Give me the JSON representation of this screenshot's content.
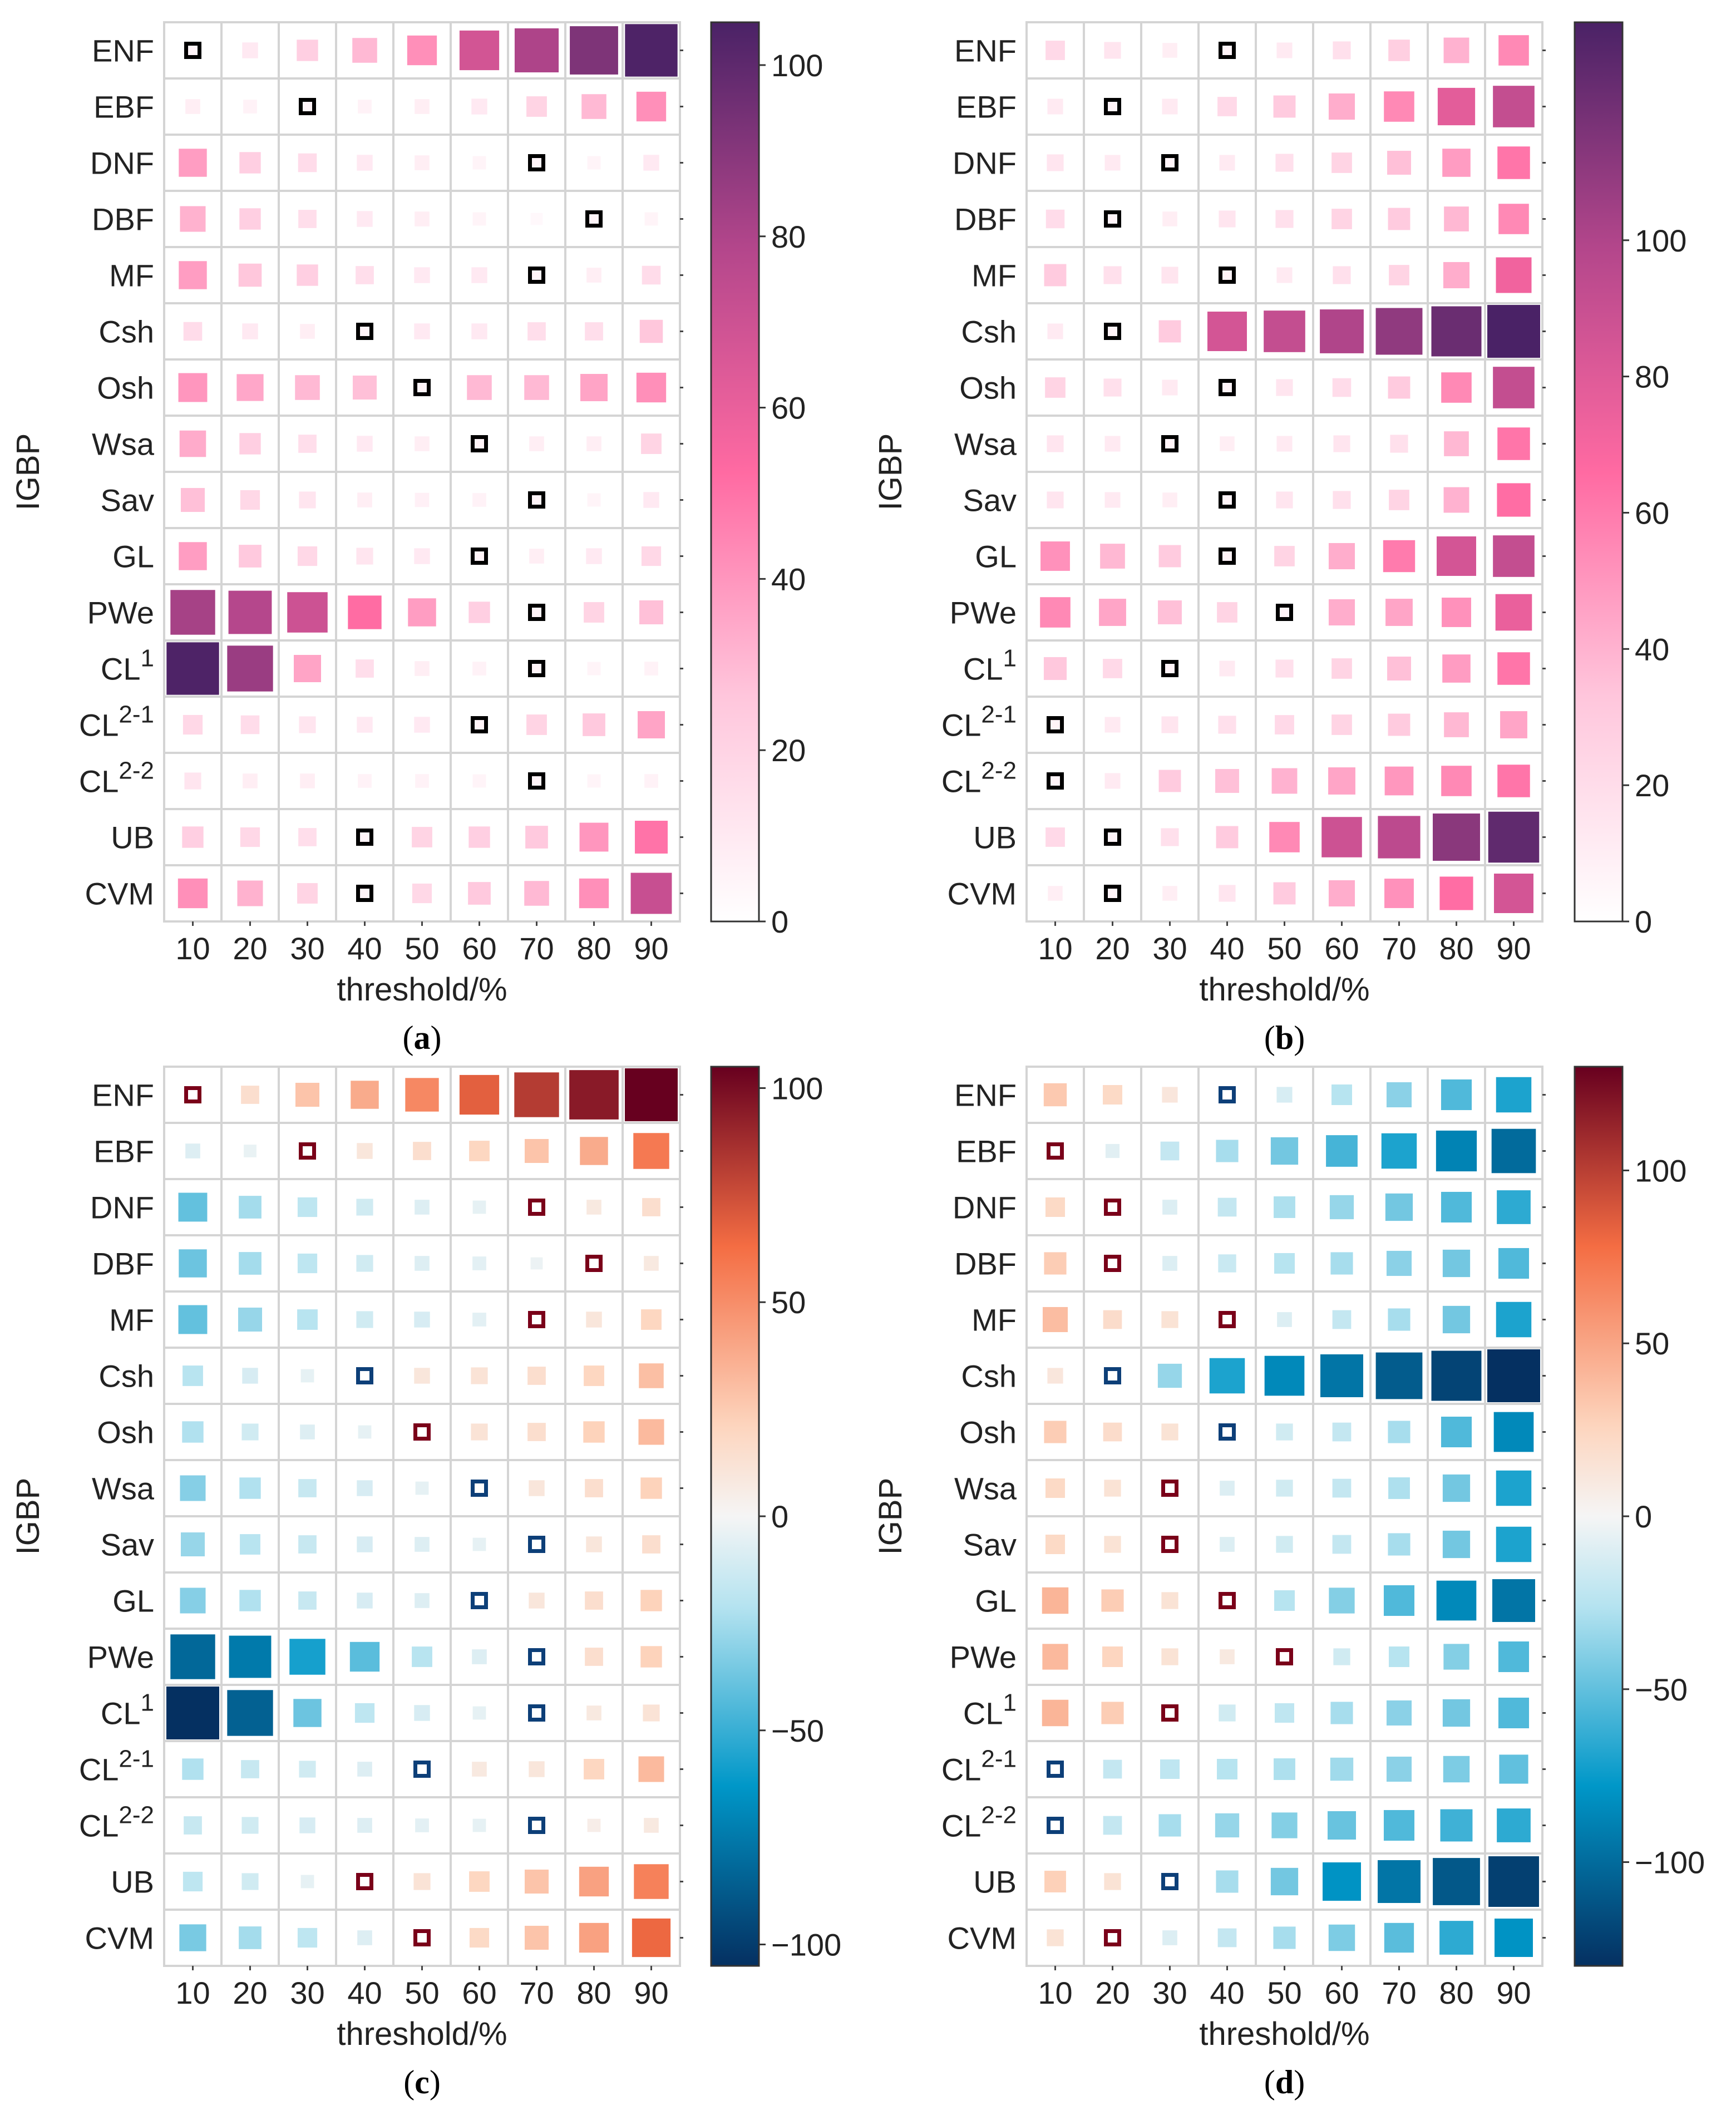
{
  "figure": {
    "captions": [
      "(a)",
      "(b)",
      "(c)",
      "(d)"
    ],
    "caption_letters": [
      "a",
      "b",
      "c",
      "d"
    ]
  },
  "chart_data": [
    {
      "id": "a",
      "type": "heatmap",
      "caption": "(a)",
      "xlabel": "threshold/%",
      "ylabel": "IGBP",
      "x": [
        "10",
        "20",
        "30",
        "40",
        "50",
        "60",
        "70",
        "80",
        "90"
      ],
      "y": [
        {
          "base": "ENF",
          "sup": ""
        },
        {
          "base": "EBF",
          "sup": ""
        },
        {
          "base": "DNF",
          "sup": ""
        },
        {
          "base": "DBF",
          "sup": ""
        },
        {
          "base": "MF",
          "sup": ""
        },
        {
          "base": "Csh",
          "sup": ""
        },
        {
          "base": "Osh",
          "sup": ""
        },
        {
          "base": "Wsa",
          "sup": ""
        },
        {
          "base": "Sav",
          "sup": ""
        },
        {
          "base": "GL",
          "sup": ""
        },
        {
          "base": "PWe",
          "sup": ""
        },
        {
          "base": "CL",
          "sup": "1"
        },
        {
          "base": "CL",
          "sup": "2-1"
        },
        {
          "base": "CL",
          "sup": "2-2"
        },
        {
          "base": "UB",
          "sup": ""
        },
        {
          "base": "CVM",
          "sup": ""
        }
      ],
      "colormap": "sequential",
      "cmin": 0,
      "cmax": 105,
      "colorbar_ticks": [
        "0",
        "20",
        "40",
        "60",
        "80",
        "100"
      ],
      "colorbar_tick_values": [
        0,
        20,
        40,
        60,
        80,
        100
      ],
      "values": [
        [
          3,
          10,
          22,
          30,
          42,
          68,
          80,
          92,
          104
        ],
        [
          8,
          6,
          2,
          6,
          8,
          10,
          20,
          30,
          42
        ],
        [
          38,
          22,
          16,
          10,
          8,
          5,
          3,
          5,
          10
        ],
        [
          32,
          22,
          15,
          10,
          8,
          5,
          3,
          2,
          5
        ],
        [
          38,
          26,
          22,
          15,
          10,
          10,
          3,
          8,
          16
        ],
        [
          16,
          10,
          8,
          3,
          10,
          10,
          15,
          15,
          26
        ],
        [
          40,
          35,
          30,
          28,
          3,
          30,
          30,
          36,
          42
        ],
        [
          34,
          22,
          15,
          10,
          8,
          3,
          8,
          8,
          20
        ],
        [
          28,
          18,
          12,
          8,
          7,
          6,
          3,
          5,
          10
        ],
        [
          38,
          25,
          18,
          12,
          10,
          3,
          8,
          10,
          18
        ],
        [
          82,
          78,
          70,
          52,
          38,
          22,
          3,
          20,
          28
        ],
        [
          104,
          85,
          36,
          15,
          8,
          6,
          3,
          5,
          6
        ],
        [
          18,
          16,
          12,
          10,
          10,
          3,
          20,
          25,
          36
        ],
        [
          12,
          8,
          8,
          6,
          6,
          5,
          3,
          5,
          6
        ],
        [
          22,
          18,
          15,
          3,
          20,
          22,
          25,
          40,
          50
        ],
        [
          42,
          32,
          20,
          3,
          18,
          25,
          30,
          42,
          72
        ]
      ],
      "marked_cells": [
        [
          0,
          0
        ],
        [
          1,
          2
        ],
        [
          2,
          6
        ],
        [
          3,
          7
        ],
        [
          4,
          6
        ],
        [
          5,
          3
        ],
        [
          6,
          4
        ],
        [
          7,
          5
        ],
        [
          8,
          6
        ],
        [
          9,
          5
        ],
        [
          10,
          6
        ],
        [
          11,
          6
        ],
        [
          12,
          5
        ],
        [
          13,
          6
        ],
        [
          14,
          3
        ],
        [
          15,
          3
        ]
      ]
    },
    {
      "id": "b",
      "type": "heatmap",
      "caption": "(b)",
      "xlabel": "threshold/%",
      "ylabel": "IGBP",
      "x": [
        "10",
        "20",
        "30",
        "40",
        "50",
        "60",
        "70",
        "80",
        "90"
      ],
      "y": [
        {
          "base": "ENF",
          "sup": ""
        },
        {
          "base": "EBF",
          "sup": ""
        },
        {
          "base": "DNF",
          "sup": ""
        },
        {
          "base": "DBF",
          "sup": ""
        },
        {
          "base": "MF",
          "sup": ""
        },
        {
          "base": "Csh",
          "sup": ""
        },
        {
          "base": "Osh",
          "sup": ""
        },
        {
          "base": "Wsa",
          "sup": ""
        },
        {
          "base": "Sav",
          "sup": ""
        },
        {
          "base": "GL",
          "sup": ""
        },
        {
          "base": "PWe",
          "sup": ""
        },
        {
          "base": "CL",
          "sup": "1"
        },
        {
          "base": "CL",
          "sup": "2-1"
        },
        {
          "base": "CL",
          "sup": "2-2"
        },
        {
          "base": "UB",
          "sup": ""
        },
        {
          "base": "CVM",
          "sup": ""
        }
      ],
      "colormap": "sequential",
      "cmin": 0,
      "cmax": 132,
      "colorbar_ticks": [
        "0",
        "20",
        "40",
        "60",
        "80",
        "100"
      ],
      "colorbar_tick_values": [
        0,
        20,
        40,
        60,
        80,
        100
      ],
      "values": [
        [
          22,
          15,
          10,
          3,
          12,
          18,
          28,
          40,
          55
        ],
        [
          12,
          3,
          12,
          22,
          30,
          42,
          55,
          78,
          92
        ],
        [
          15,
          12,
          3,
          12,
          18,
          25,
          35,
          48,
          62
        ],
        [
          20,
          3,
          10,
          15,
          18,
          25,
          30,
          38,
          55
        ],
        [
          30,
          18,
          15,
          3,
          12,
          18,
          25,
          42,
          72
        ],
        [
          12,
          3,
          30,
          85,
          92,
          100,
          110,
          122,
          132
        ],
        [
          25,
          18,
          12,
          3,
          15,
          20,
          30,
          55,
          92
        ],
        [
          15,
          12,
          3,
          10,
          12,
          15,
          18,
          38,
          62
        ],
        [
          15,
          12,
          10,
          3,
          15,
          18,
          25,
          40,
          65
        ],
        [
          52,
          38,
          30,
          3,
          25,
          42,
          60,
          85,
          92
        ],
        [
          55,
          45,
          35,
          25,
          3,
          42,
          45,
          52,
          75
        ],
        [
          32,
          22,
          3,
          12,
          18,
          25,
          35,
          48,
          62
        ],
        [
          3,
          12,
          15,
          18,
          22,
          25,
          30,
          38,
          45
        ],
        [
          3,
          12,
          30,
          35,
          40,
          45,
          50,
          55,
          62
        ],
        [
          22,
          3,
          18,
          30,
          55,
          88,
          95,
          112,
          125
        ],
        [
          10,
          3,
          10,
          15,
          30,
          42,
          52,
          65,
          85
        ]
      ],
      "marked_cells": [
        [
          0,
          3
        ],
        [
          1,
          1
        ],
        [
          2,
          2
        ],
        [
          3,
          1
        ],
        [
          4,
          3
        ],
        [
          5,
          1
        ],
        [
          6,
          3
        ],
        [
          7,
          2
        ],
        [
          8,
          3
        ],
        [
          9,
          3
        ],
        [
          10,
          4
        ],
        [
          11,
          2
        ],
        [
          12,
          0
        ],
        [
          13,
          0
        ],
        [
          14,
          1
        ],
        [
          15,
          1
        ]
      ]
    },
    {
      "id": "c",
      "type": "heatmap",
      "caption": "(c)",
      "xlabel": "threshold/%",
      "ylabel": "IGBP",
      "x": [
        "10",
        "20",
        "30",
        "40",
        "50",
        "60",
        "70",
        "80",
        "90"
      ],
      "y": [
        {
          "base": "ENF",
          "sup": ""
        },
        {
          "base": "EBF",
          "sup": ""
        },
        {
          "base": "DNF",
          "sup": ""
        },
        {
          "base": "DBF",
          "sup": ""
        },
        {
          "base": "MF",
          "sup": ""
        },
        {
          "base": "Csh",
          "sup": ""
        },
        {
          "base": "Osh",
          "sup": ""
        },
        {
          "base": "Wsa",
          "sup": ""
        },
        {
          "base": "Sav",
          "sup": ""
        },
        {
          "base": "GL",
          "sup": ""
        },
        {
          "base": "PWe",
          "sup": ""
        },
        {
          "base": "CL",
          "sup": "1"
        },
        {
          "base": "CL",
          "sup": "2-1"
        },
        {
          "base": "CL",
          "sup": "2-2"
        },
        {
          "base": "UB",
          "sup": ""
        },
        {
          "base": "CVM",
          "sup": ""
        }
      ],
      "colormap": "diverging",
      "cmin": -105,
      "cmax": 105,
      "colorbar_ticks": [
        "−100",
        "−50",
        "0",
        "50",
        "100"
      ],
      "colorbar_tick_values": [
        -100,
        -50,
        0,
        50,
        100
      ],
      "values": [
        [
          0,
          15,
          28,
          38,
          52,
          68,
          82,
          95,
          105
        ],
        [
          -8,
          -4,
          0,
          10,
          15,
          20,
          28,
          38,
          58
        ],
        [
          -40,
          -25,
          -18,
          -12,
          -8,
          -5,
          0,
          8,
          15
        ],
        [
          -38,
          -25,
          -18,
          -12,
          -8,
          -6,
          -3,
          0,
          8
        ],
        [
          -40,
          -28,
          -20,
          -12,
          -10,
          -6,
          0,
          10,
          20
        ],
        [
          -20,
          -10,
          -5,
          0,
          10,
          12,
          15,
          20,
          30
        ],
        [
          -22,
          -12,
          -8,
          -5,
          0,
          12,
          15,
          22,
          32
        ],
        [
          -32,
          -22,
          -15,
          -10,
          -5,
          0,
          10,
          15,
          22
        ],
        [
          -28,
          -20,
          -15,
          -10,
          -8,
          -5,
          0,
          10,
          15
        ],
        [
          -32,
          -22,
          -15,
          -10,
          -8,
          0,
          10,
          15,
          22
        ],
        [
          -82,
          -75,
          -58,
          -42,
          -20,
          -8,
          0,
          15,
          22
        ],
        [
          -105,
          -85,
          -38,
          -18,
          -10,
          -5,
          0,
          8,
          12
        ],
        [
          -22,
          -15,
          -12,
          -8,
          0,
          8,
          10,
          20,
          32
        ],
        [
          -15,
          -12,
          -10,
          -8,
          -6,
          -5,
          0,
          5,
          8
        ],
        [
          -18,
          -12,
          -5,
          0,
          12,
          20,
          28,
          42,
          55
        ],
        [
          -35,
          -25,
          -18,
          -8,
          0,
          18,
          28,
          42,
          65
        ]
      ],
      "marked_cells": [
        [
          0,
          0
        ],
        [
          1,
          2
        ],
        [
          2,
          6
        ],
        [
          3,
          7
        ],
        [
          4,
          6
        ],
        [
          5,
          3
        ],
        [
          6,
          4
        ],
        [
          7,
          5
        ],
        [
          8,
          6
        ],
        [
          9,
          5
        ],
        [
          10,
          6
        ],
        [
          11,
          6
        ],
        [
          12,
          4
        ],
        [
          13,
          6
        ],
        [
          14,
          3
        ],
        [
          15,
          4
        ]
      ],
      "marked_colors": [
        "pos",
        "pos",
        "pos",
        "pos",
        "pos",
        "neg",
        "pos",
        "neg",
        "neg",
        "neg",
        "neg",
        "neg",
        "neg",
        "neg",
        "pos",
        "pos"
      ]
    },
    {
      "id": "d",
      "type": "heatmap",
      "caption": "(d)",
      "xlabel": "threshold/%",
      "ylabel": "IGBP",
      "x": [
        "10",
        "20",
        "30",
        "40",
        "50",
        "60",
        "70",
        "80",
        "90"
      ],
      "y": [
        {
          "base": "ENF",
          "sup": ""
        },
        {
          "base": "EBF",
          "sup": ""
        },
        {
          "base": "DNF",
          "sup": ""
        },
        {
          "base": "DBF",
          "sup": ""
        },
        {
          "base": "MF",
          "sup": ""
        },
        {
          "base": "Csh",
          "sup": ""
        },
        {
          "base": "Osh",
          "sup": ""
        },
        {
          "base": "Wsa",
          "sup": ""
        },
        {
          "base": "Sav",
          "sup": ""
        },
        {
          "base": "GL",
          "sup": ""
        },
        {
          "base": "PWe",
          "sup": ""
        },
        {
          "base": "CL",
          "sup": "1"
        },
        {
          "base": "CL",
          "sup": "2-1"
        },
        {
          "base": "CL",
          "sup": "2-2"
        },
        {
          "base": "UB",
          "sup": ""
        },
        {
          "base": "CVM",
          "sup": ""
        }
      ],
      "colormap": "diverging",
      "cmin": -130,
      "cmax": 130,
      "colorbar_ticks": [
        "−100",
        "−50",
        "0",
        "50",
        "100"
      ],
      "colorbar_tick_values": [
        -100,
        -50,
        0,
        50,
        100
      ],
      "values": [
        [
          32,
          22,
          12,
          0,
          -12,
          -25,
          -38,
          -55,
          -70
        ],
        [
          0,
          -8,
          -20,
          -30,
          -45,
          -58,
          -70,
          -88,
          -100
        ],
        [
          22,
          0,
          -10,
          -20,
          -28,
          -35,
          -45,
          -55,
          -65
        ],
        [
          30,
          0,
          -10,
          -18,
          -25,
          -30,
          -38,
          -45,
          -55
        ],
        [
          38,
          20,
          15,
          0,
          -10,
          -20,
          -30,
          -45,
          -70
        ],
        [
          12,
          0,
          -35,
          -70,
          -85,
          -95,
          -108,
          -120,
          -130
        ],
        [
          30,
          20,
          15,
          0,
          -15,
          -20,
          -30,
          -55,
          -85
        ],
        [
          22,
          15,
          0,
          -10,
          -15,
          -20,
          -28,
          -45,
          -70
        ],
        [
          22,
          15,
          0,
          -10,
          -15,
          -20,
          -30,
          -45,
          -70
        ],
        [
          42,
          30,
          15,
          0,
          -25,
          -40,
          -55,
          -85,
          -95
        ],
        [
          40,
          25,
          15,
          10,
          0,
          -15,
          -25,
          -40,
          -55
        ],
        [
          42,
          30,
          0,
          -15,
          -22,
          -30,
          -38,
          -45,
          -55
        ],
        [
          0,
          -20,
          -22,
          -25,
          -28,
          -32,
          -38,
          -42,
          -50
        ],
        [
          0,
          -20,
          -30,
          -35,
          -40,
          -48,
          -55,
          -60,
          -65
        ],
        [
          28,
          15,
          0,
          -30,
          -45,
          -80,
          -95,
          -110,
          -122
        ],
        [
          15,
          0,
          -10,
          -20,
          -30,
          -42,
          -52,
          -65,
          -80
        ]
      ],
      "marked_cells": [
        [
          0,
          3
        ],
        [
          1,
          0
        ],
        [
          2,
          1
        ],
        [
          3,
          1
        ],
        [
          4,
          3
        ],
        [
          5,
          1
        ],
        [
          6,
          3
        ],
        [
          7,
          2
        ],
        [
          8,
          2
        ],
        [
          9,
          3
        ],
        [
          10,
          4
        ],
        [
          11,
          2
        ],
        [
          12,
          0
        ],
        [
          13,
          0
        ],
        [
          14,
          2
        ],
        [
          15,
          1
        ]
      ],
      "marked_colors": [
        "neg",
        "pos",
        "pos",
        "pos",
        "pos",
        "neg",
        "neg",
        "pos",
        "pos",
        "pos",
        "pos",
        "pos",
        "neg",
        "neg",
        "neg",
        "pos"
      ]
    }
  ]
}
